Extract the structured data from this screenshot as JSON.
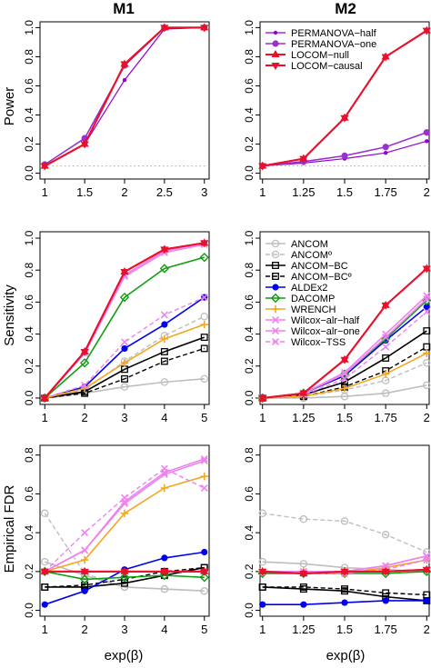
{
  "figure": {
    "col_titles": [
      "M1",
      "M2"
    ],
    "row_ylabels": [
      "Power",
      "Sensitivity",
      "Empirical FDR"
    ],
    "xlabel": "exp(β)"
  },
  "legend_power": [
    "PERMANOVA−half",
    "PERMANOVA−one",
    "LOCOM−null",
    "LOCOM−causal"
  ],
  "legend_main": [
    "ANCOM",
    "ANCOMº",
    "ANCOM−BC",
    "ANCOM−BCº",
    "ALDEx2",
    "DACOMP",
    "WRENCH",
    "Wilcox−alr−half",
    "Wilcox−alr−one",
    "Wilcox−TSS"
  ],
  "colors": {
    "PERMANOVA-half": "#9400D3",
    "PERMANOVA-one": "#9932CC",
    "LOCOM-null": "#E8112D",
    "LOCOM-causal": "#E8112D",
    "ANCOM": "#BEBEBE",
    "ANCOM-o": "#BEBEBE",
    "ANCOM-BC": "#000000",
    "ANCOM-BC-o": "#000000",
    "ALDEx2": "#0000EE",
    "DACOMP": "#109E10",
    "WRENCH": "#F5A623",
    "Wilcox-alr-half": "#EE82EE",
    "Wilcox-alr-one": "#EE82EE",
    "Wilcox-TSS": "#EE82EE",
    "reference_line": "#AAAAAA"
  },
  "chart_data": [
    {
      "type": "line",
      "panel": "power-m1",
      "title": "M1",
      "xlabel": "",
      "ylabel": "Power",
      "x": [
        1,
        1.5,
        2,
        2.5,
        3
      ],
      "xticks": [
        "1",
        "1.5",
        "2",
        "2.5",
        "3"
      ],
      "yticks": [
        "0.0",
        "0.2",
        "0.4",
        "0.6",
        "0.8",
        "1.0"
      ],
      "ylim": [
        0,
        1
      ],
      "reference_line": 0.05,
      "series": [
        {
          "name": "PERMANOVA−half",
          "values": [
            0.05,
            0.2,
            0.64,
            0.99,
            1.0
          ]
        },
        {
          "name": "PERMANOVA−one",
          "values": [
            0.06,
            0.24,
            0.74,
            1.0,
            1.0
          ]
        },
        {
          "name": "LOCOM−null",
          "values": [
            0.05,
            0.2,
            0.75,
            1.0,
            1.0
          ]
        },
        {
          "name": "LOCOM−causal",
          "values": [
            0.05,
            0.2,
            0.75,
            1.0,
            1.0
          ]
        }
      ]
    },
    {
      "type": "line",
      "panel": "power-m2",
      "title": "M2",
      "xlabel": "",
      "ylabel": "",
      "x": [
        1,
        1.25,
        1.5,
        1.75,
        2
      ],
      "xticks": [
        "1",
        "1.25",
        "1.5",
        "1.75",
        "2"
      ],
      "yticks": [
        "0.0",
        "0.2",
        "0.4",
        "0.6",
        "0.8",
        "1.0"
      ],
      "ylim": [
        0,
        1
      ],
      "reference_line": 0.05,
      "legend": "top-left",
      "series": [
        {
          "name": "PERMANOVA−half",
          "values": [
            0.05,
            0.07,
            0.1,
            0.14,
            0.22
          ]
        },
        {
          "name": "PERMANOVA−one",
          "values": [
            0.05,
            0.08,
            0.12,
            0.18,
            0.28
          ]
        },
        {
          "name": "LOCOM−null",
          "values": [
            0.05,
            0.1,
            0.38,
            0.8,
            0.98
          ]
        },
        {
          "name": "LOCOM−causal",
          "values": [
            0.05,
            0.1,
            0.38,
            0.8,
            0.98
          ]
        }
      ]
    },
    {
      "type": "line",
      "panel": "sensitivity-m1",
      "xlabel": "",
      "ylabel": "Sensitivity",
      "x": [
        1,
        2,
        3,
        4,
        5
      ],
      "xticks": [
        "1",
        "2",
        "3",
        "4",
        "5"
      ],
      "yticks": [
        "0.0",
        "0.2",
        "0.4",
        "0.6",
        "0.8",
        "1.0"
      ],
      "ylim": [
        0,
        1
      ],
      "series": [
        {
          "name": "ANCOM",
          "values": [
            0.0,
            0.03,
            0.07,
            0.1,
            0.12
          ]
        },
        {
          "name": "ANCOMº",
          "values": [
            0.0,
            0.05,
            0.23,
            0.39,
            0.51
          ]
        },
        {
          "name": "ANCOM−BC",
          "values": [
            0.0,
            0.04,
            0.18,
            0.29,
            0.38
          ]
        },
        {
          "name": "ANCOM−BCº",
          "values": [
            0.0,
            0.03,
            0.12,
            0.23,
            0.31
          ]
        },
        {
          "name": "ALDEx2",
          "values": [
            0.0,
            0.07,
            0.31,
            0.46,
            0.63
          ]
        },
        {
          "name": "DACOMP",
          "values": [
            0.0,
            0.22,
            0.63,
            0.81,
            0.88
          ]
        },
        {
          "name": "WRENCH",
          "values": [
            0.0,
            0.06,
            0.22,
            0.37,
            0.46
          ]
        },
        {
          "name": "Wilcox−alr−half",
          "values": [
            0.0,
            0.28,
            0.77,
            0.92,
            0.97
          ]
        },
        {
          "name": "Wilcox−alr−one",
          "values": [
            0.0,
            0.28,
            0.76,
            0.91,
            0.96
          ]
        },
        {
          "name": "Wilcox−TSS",
          "values": [
            0.0,
            0.08,
            0.35,
            0.52,
            0.63
          ]
        },
        {
          "name": "LOCOM−null",
          "values": [
            0.0,
            0.29,
            0.79,
            0.93,
            0.97
          ]
        },
        {
          "name": "LOCOM−causal",
          "values": [
            0.0,
            0.29,
            0.79,
            0.93,
            0.97
          ]
        }
      ]
    },
    {
      "type": "line",
      "panel": "sensitivity-m2",
      "xlabel": "",
      "ylabel": "",
      "x": [
        1,
        1.25,
        1.5,
        1.75,
        2
      ],
      "xticks": [
        "1",
        "1.25",
        "1.5",
        "1.75",
        "2"
      ],
      "yticks": [
        "0.0",
        "0.2",
        "0.4",
        "0.6",
        "0.8",
        "1.0"
      ],
      "ylim": [
        0,
        1
      ],
      "legend": "top-left",
      "series": [
        {
          "name": "ANCOM",
          "values": [
            0.0,
            0.0,
            0.01,
            0.03,
            0.08
          ]
        },
        {
          "name": "ANCOMº",
          "values": [
            0.0,
            0.01,
            0.05,
            0.11,
            0.22
          ]
        },
        {
          "name": "ANCOM−BC",
          "values": [
            0.0,
            0.02,
            0.1,
            0.25,
            0.42
          ]
        },
        {
          "name": "ANCOM−BCº",
          "values": [
            0.0,
            0.01,
            0.07,
            0.17,
            0.32
          ]
        },
        {
          "name": "ALDEx2",
          "values": [
            0.0,
            0.03,
            0.14,
            0.36,
            0.57
          ]
        },
        {
          "name": "DACOMP",
          "values": [
            0.0,
            0.03,
            0.15,
            0.37,
            0.61
          ]
        },
        {
          "name": "WRENCH",
          "values": [
            0.0,
            0.01,
            0.06,
            0.15,
            0.28
          ]
        },
        {
          "name": "Wilcox−alr−half",
          "values": [
            0.0,
            0.03,
            0.16,
            0.4,
            0.64
          ]
        },
        {
          "name": "Wilcox−alr−one",
          "values": [
            0.0,
            0.03,
            0.15,
            0.38,
            0.62
          ]
        },
        {
          "name": "Wilcox−TSS",
          "values": [
            0.0,
            0.02,
            0.12,
            0.32,
            0.54
          ]
        },
        {
          "name": "LOCOM−null",
          "values": [
            0.0,
            0.03,
            0.24,
            0.58,
            0.81
          ]
        },
        {
          "name": "LOCOM−causal",
          "values": [
            0.0,
            0.03,
            0.24,
            0.58,
            0.81
          ]
        }
      ]
    },
    {
      "type": "line",
      "panel": "fdr-m1",
      "xlabel": "exp(β)",
      "ylabel": "Empirical FDR",
      "x": [
        1,
        2,
        3,
        4,
        5
      ],
      "xticks": [
        "1",
        "2",
        "3",
        "4",
        "5"
      ],
      "yticks": [
        "0.0",
        "0.2",
        "0.4",
        "0.6",
        "0.8"
      ],
      "ylim": [
        0,
        0.85
      ],
      "reference_line": 0.2,
      "series": [
        {
          "name": "ANCOM",
          "values": [
            0.25,
            0.18,
            0.12,
            0.11,
            0.1
          ]
        },
        {
          "name": "ANCOMº",
          "values": [
            0.5,
            0.19,
            0.12,
            0.11,
            0.1
          ]
        },
        {
          "name": "ANCOM−BC",
          "values": [
            0.12,
            0.12,
            0.14,
            0.18,
            0.22
          ]
        },
        {
          "name": "ANCOM−BCº",
          "values": [
            0.12,
            0.13,
            0.16,
            0.2,
            0.22
          ]
        },
        {
          "name": "ALDEx2",
          "values": [
            0.03,
            0.1,
            0.21,
            0.27,
            0.3
          ]
        },
        {
          "name": "DACOMP",
          "values": [
            0.2,
            0.16,
            0.17,
            0.18,
            0.17
          ]
        },
        {
          "name": "WRENCH",
          "values": [
            0.2,
            0.26,
            0.5,
            0.63,
            0.69
          ]
        },
        {
          "name": "Wilcox−alr−half",
          "values": [
            0.2,
            0.31,
            0.56,
            0.71,
            0.78
          ]
        },
        {
          "name": "Wilcox−alr−one",
          "values": [
            0.2,
            0.31,
            0.55,
            0.7,
            0.77
          ]
        },
        {
          "name": "Wilcox−TSS",
          "values": [
            0.2,
            0.4,
            0.58,
            0.73,
            0.63
          ]
        },
        {
          "name": "LOCOM−null",
          "values": [
            0.2,
            0.2,
            0.2,
            0.2,
            0.2
          ]
        },
        {
          "name": "LOCOM−causal",
          "values": [
            0.2,
            0.2,
            0.2,
            0.2,
            0.2
          ]
        }
      ]
    },
    {
      "type": "line",
      "panel": "fdr-m2",
      "xlabel": "exp(β)",
      "ylabel": "",
      "x": [
        1,
        1.25,
        1.5,
        1.75,
        2
      ],
      "xticks": [
        "1",
        "1.25",
        "1.5",
        "1.75",
        "2"
      ],
      "yticks": [
        "0.0",
        "0.2",
        "0.4",
        "0.6",
        "0.8"
      ],
      "ylim": [
        0,
        0.85
      ],
      "reference_line": 0.2,
      "series": [
        {
          "name": "ANCOM",
          "values": [
            0.25,
            0.24,
            0.22,
            0.21,
            0.2
          ]
        },
        {
          "name": "ANCOMº",
          "values": [
            0.5,
            0.47,
            0.46,
            0.39,
            0.3
          ]
        },
        {
          "name": "ANCOM−BC",
          "values": [
            0.12,
            0.11,
            0.1,
            0.07,
            0.05
          ]
        },
        {
          "name": "ANCOM−BCº",
          "values": [
            0.12,
            0.12,
            0.11,
            0.09,
            0.08
          ]
        },
        {
          "name": "ALDEx2",
          "values": [
            0.03,
            0.03,
            0.04,
            0.05,
            0.05
          ]
        },
        {
          "name": "DACOMP",
          "values": [
            0.19,
            0.19,
            0.19,
            0.19,
            0.2
          ]
        },
        {
          "name": "WRENCH",
          "values": [
            0.2,
            0.2,
            0.19,
            0.22,
            0.26
          ]
        },
        {
          "name": "Wilcox−alr−half",
          "values": [
            0.2,
            0.2,
            0.2,
            0.23,
            0.28
          ]
        },
        {
          "name": "Wilcox−alr−one",
          "values": [
            0.2,
            0.2,
            0.2,
            0.23,
            0.28
          ]
        },
        {
          "name": "Wilcox−TSS",
          "values": [
            0.2,
            0.19,
            0.19,
            0.21,
            0.26
          ]
        },
        {
          "name": "LOCOM−null",
          "values": [
            0.2,
            0.19,
            0.2,
            0.2,
            0.21
          ]
        },
        {
          "name": "LOCOM−causal",
          "values": [
            0.2,
            0.19,
            0.2,
            0.2,
            0.21
          ]
        }
      ]
    }
  ]
}
